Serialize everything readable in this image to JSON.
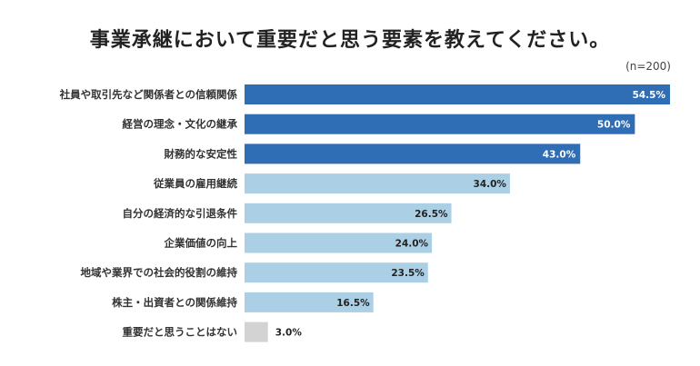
{
  "chart_data": {
    "type": "bar",
    "orientation": "horizontal",
    "title": "事業承継において重要だと思う要素を教えてください。",
    "note": "(n=200)",
    "unit": "%",
    "xlim": [
      0,
      54.5
    ],
    "grid": false,
    "categories": [
      "社員や取引先など関係者との信頼関係",
      "経営の理念・文化の継承",
      "財務的な安定性",
      "従業員の雇用継続",
      "自分の経済的な引退条件",
      "企業価値の向上",
      "地域や業界での社会的役割の維持",
      "株主・出資者との関係維持",
      "重要だと思うことはない"
    ],
    "values": [
      54.5,
      50.0,
      43.0,
      34.0,
      26.5,
      24.0,
      23.5,
      16.5,
      3.0
    ],
    "value_labels": [
      "54.5%",
      "50.0%",
      "43.0%",
      "34.0%",
      "26.5%",
      "24.0%",
      "23.5%",
      "16.5%",
      "3.0%"
    ],
    "colors": {
      "top3": "#2f6db5",
      "others": "#abd0e5",
      "none": "#d3d3d3",
      "label_inside": "#ffffff",
      "label_outside": "#222222"
    }
  }
}
